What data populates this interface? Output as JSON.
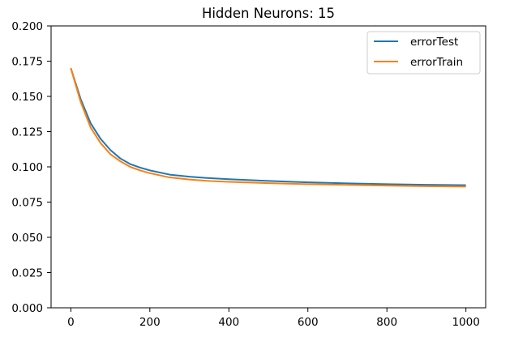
{
  "chart_data": {
    "type": "line",
    "title": "Hidden Neurons: 15",
    "xlabel": "",
    "ylabel": "",
    "xlim": [
      -50,
      1050
    ],
    "ylim": [
      0,
      0.2
    ],
    "x_ticks": [
      0,
      200,
      400,
      600,
      800,
      1000
    ],
    "x_tick_labels": [
      "0",
      "200",
      "400",
      "600",
      "800",
      "1000"
    ],
    "y_ticks": [
      0,
      0.025,
      0.05,
      0.075,
      0.1,
      0.125,
      0.15,
      0.175,
      0.2
    ],
    "y_tick_labels": [
      "0.000",
      "0.025",
      "0.050",
      "0.075",
      "0.100",
      "0.125",
      "0.150",
      "0.175",
      "0.200"
    ],
    "grid": false,
    "legend_position": "upper right",
    "x": [
      0,
      25,
      50,
      75,
      100,
      125,
      150,
      175,
      200,
      250,
      300,
      350,
      400,
      500,
      600,
      700,
      800,
      900,
      1000
    ],
    "series": [
      {
        "name": "errorTest",
        "color": "#1f77b4",
        "values": [
          0.17,
          0.148,
          0.131,
          0.12,
          0.112,
          0.106,
          0.102,
          0.0995,
          0.0975,
          0.0945,
          0.093,
          0.092,
          0.0912,
          0.09,
          0.089,
          0.0883,
          0.0877,
          0.0873,
          0.087
        ]
      },
      {
        "name": "errorTrain",
        "color": "#ff7f0e",
        "values": [
          0.17,
          0.146,
          0.128,
          0.117,
          0.109,
          0.104,
          0.1,
          0.0975,
          0.0955,
          0.0925,
          0.091,
          0.09,
          0.0894,
          0.0884,
          0.0877,
          0.0872,
          0.0867,
          0.0863,
          0.086
        ]
      }
    ]
  }
}
